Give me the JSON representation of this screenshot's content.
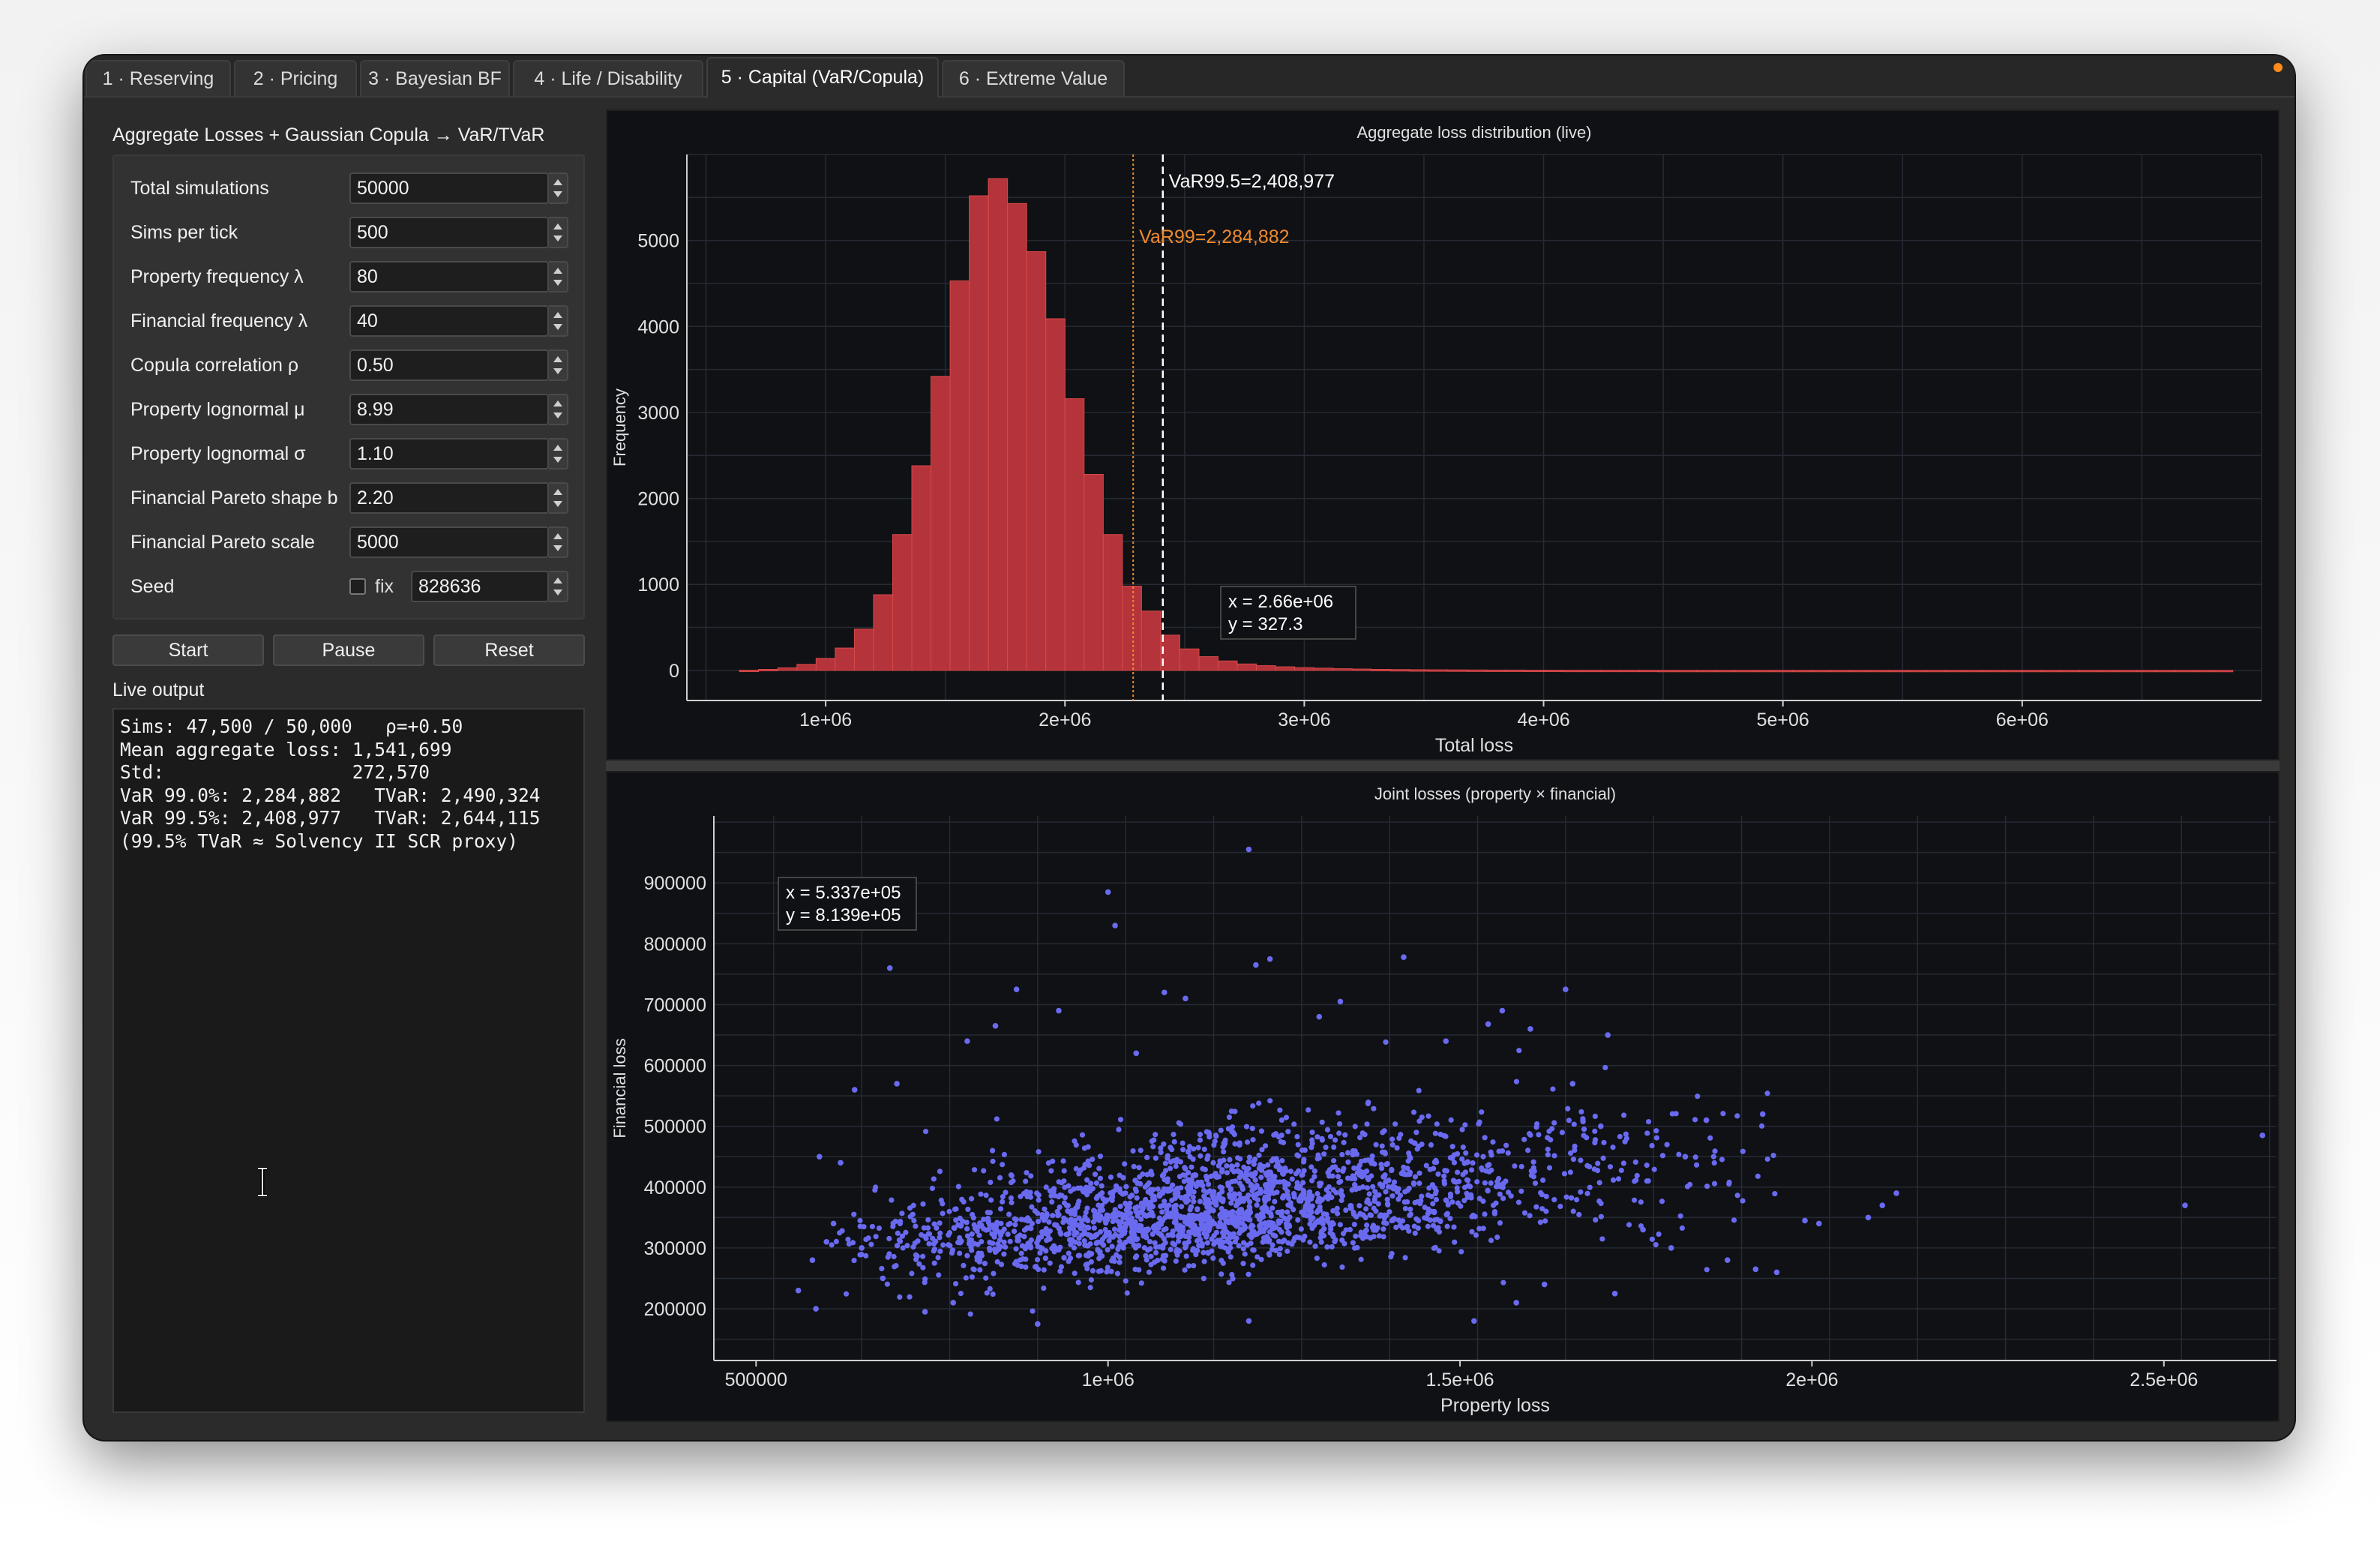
{
  "tabs": [
    {
      "label": "1 · Reserving"
    },
    {
      "label": "2 · Pricing"
    },
    {
      "label": "3 · Bayesian BF"
    },
    {
      "label": "4 · Life / Disability"
    },
    {
      "label": "5 · Capital (VaR/Copula)",
      "active": true
    },
    {
      "label": "6 · Extreme Value"
    }
  ],
  "panel": {
    "title": "Aggregate Losses + Gaussian Copula → VaR/TVaR",
    "fields": [
      {
        "label": "Total simulations",
        "value": "50000"
      },
      {
        "label": "Sims per tick",
        "value": "500"
      },
      {
        "label": "Property frequency λ",
        "value": "80"
      },
      {
        "label": "Financial frequency λ",
        "value": "40"
      },
      {
        "label": "Copula correlation ρ",
        "value": "0.50"
      },
      {
        "label": "Property lognormal μ",
        "value": "8.99"
      },
      {
        "label": "Property lognormal σ",
        "value": "1.10"
      },
      {
        "label": "Financial Pareto shape b",
        "value": "2.20"
      },
      {
        "label": "Financial Pareto scale",
        "value": "5000"
      }
    ],
    "seed": {
      "label": "Seed",
      "fix_label": "fix",
      "fixed": false,
      "value": "828636"
    },
    "buttons": {
      "start": "Start",
      "pause": "Pause",
      "reset": "Reset"
    },
    "live_label": "Live output",
    "live_output": [
      "Sims: 47,500 / 50,000   ρ=+0.50",
      "Mean aggregate loss: 1,541,699",
      "Std:                 272,570",
      "VaR 99.0%: 2,284,882   TVaR: 2,490,324",
      "VaR 99.5%: 2,408,977   TVaR: 2,644,115",
      "(99.5% TVaR ≈ Solvency II SCR proxy)"
    ]
  },
  "colors": {
    "hist_fill": "#b5333a",
    "hist_edge": "#d64a4a",
    "var99": "#f08a2c",
    "var995": "#ffffff",
    "scatter": "#6a6af0",
    "plot_bg": "#0f1115",
    "grid": "#262a33",
    "axis_text": "#e0e0e0"
  },
  "chart_data": [
    {
      "type": "bar",
      "title": "Aggregate loss distribution (live)",
      "xlabel": "Total loss",
      "ylabel": "Frequency",
      "xlim": [
        420000,
        7000000
      ],
      "ylim": [
        -350,
        6000
      ],
      "xticks": [
        1000000,
        2000000,
        3000000,
        4000000,
        5000000,
        6000000
      ],
      "xtick_labels": [
        "1e+06",
        "2e+06",
        "3e+06",
        "4e+06",
        "5e+06",
        "6e+06"
      ],
      "yticks": [
        0,
        1000,
        2000,
        3000,
        4000,
        5000
      ],
      "ytick_labels": [
        "0",
        "1000",
        "2000",
        "3000",
        "4000",
        "5000"
      ],
      "bin_start": 640000,
      "bin_width": 80000,
      "values": [
        3,
        12,
        30,
        70,
        140,
        260,
        480,
        880,
        1580,
        2380,
        3420,
        4530,
        5520,
        5720,
        5430,
        4870,
        4090,
        3160,
        2280,
        1580,
        980,
        690,
        410,
        250,
        160,
        110,
        75,
        55,
        42,
        32,
        26,
        20,
        16,
        12,
        10,
        8,
        7,
        6,
        5,
        4,
        4,
        3,
        3,
        2,
        2,
        2,
        2,
        2,
        1,
        1,
        1,
        1,
        1,
        1,
        1,
        1,
        1,
        1,
        1,
        1,
        1,
        1,
        1,
        1,
        1,
        1,
        1,
        1,
        1,
        1,
        1,
        1,
        1,
        1,
        1,
        1,
        1,
        1
      ],
      "lines": [
        {
          "label": "VaR99=2,284,882",
          "x": 2284882
        },
        {
          "label": "VaR99.5=2,408,977",
          "x": 2408977
        }
      ],
      "cursor_readout": {
        "x": "x = 2.66e+06",
        "y": "y = 327.3"
      },
      "grid": true
    },
    {
      "type": "scatter",
      "title": "Joint losses (property × financial)",
      "xlabel": "Property loss",
      "ylabel": "Financial loss",
      "xlim": [
        440000,
        2660000
      ],
      "ylim": [
        115000,
        1010000
      ],
      "xticks": [
        500000,
        1000000,
        1500000,
        2000000,
        2500000
      ],
      "xtick_labels": [
        "500000",
        "1e+06",
        "1.5e+06",
        "2e+06",
        "2.5e+06"
      ],
      "yticks": [
        200000,
        300000,
        400000,
        500000,
        600000,
        700000,
        800000,
        900000
      ],
      "ytick_labels": [
        "200000",
        "300000",
        "400000",
        "500000",
        "600000",
        "700000",
        "800000",
        "900000"
      ],
      "cursor_readout": {
        "x": "x = 5.337e+05",
        "y": "y = 8.139e+05"
      },
      "grid": true,
      "points": [
        [
          560000,
          230000
        ],
        [
          585000,
          200000
        ],
        [
          590000,
          450000
        ],
        [
          620000,
          440000
        ],
        [
          640000,
          560000
        ],
        [
          690000,
          760000
        ],
        [
          700000,
          570000
        ],
        [
          1000000,
          885000
        ],
        [
          1010000,
          830000
        ],
        [
          1200000,
          955000
        ],
        [
          1210000,
          765000
        ],
        [
          1230000,
          775000
        ],
        [
          1080000,
          720000
        ],
        [
          1110000,
          710000
        ],
        [
          1420000,
          778000
        ],
        [
          1650000,
          725000
        ],
        [
          1710000,
          650000
        ],
        [
          1560000,
          690000
        ],
        [
          1540000,
          668000
        ],
        [
          1330000,
          705000
        ],
        [
          870000,
          725000
        ],
        [
          840000,
          665000
        ],
        [
          800000,
          640000
        ],
        [
          930000,
          690000
        ],
        [
          1040000,
          620000
        ],
        [
          1300000,
          680000
        ],
        [
          1480000,
          640000
        ],
        [
          1600000,
          660000
        ],
        [
          1850000,
          510000
        ],
        [
          1930000,
          520000
        ],
        [
          1990000,
          345000
        ],
        [
          2010000,
          340000
        ],
        [
          2080000,
          350000
        ],
        [
          2100000,
          370000
        ],
        [
          2120000,
          390000
        ],
        [
          2530000,
          370000
        ],
        [
          2640000,
          485000
        ],
        [
          1920000,
          265000
        ],
        [
          1950000,
          260000
        ],
        [
          1880000,
          280000
        ],
        [
          1800000,
          300000
        ],
        [
          1760000,
          330000
        ],
        [
          1720000,
          225000
        ],
        [
          1820000,
          450000
        ],
        [
          1700000,
          500000
        ],
        [
          1660000,
          570000
        ],
        [
          1620000,
          240000
        ],
        [
          1580000,
          210000
        ],
        [
          1520000,
          180000
        ],
        [
          1200000,
          180000
        ],
        [
          900000,
          175000
        ],
        [
          780000,
          210000
        ],
        [
          740000,
          195000
        ],
        [
          680000,
          250000
        ],
        [
          650000,
          300000
        ],
        [
          610000,
          340000
        ],
        [
          580000,
          280000
        ],
        [
          600000,
          310000
        ]
      ],
      "cloud": {
        "n": 2300,
        "seed": 828636,
        "center": [
          1150000,
          360000
        ],
        "spread": [
          230000,
          55000
        ],
        "rho": 0.5
      }
    }
  ]
}
